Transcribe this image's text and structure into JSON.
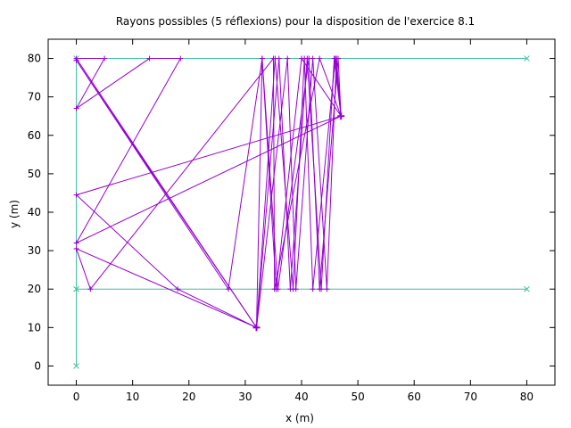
{
  "chart_data": {
    "type": "line",
    "title": "Rayons possibles (5 réflexions) pour la disposition de l'exercice 8.1",
    "xlabel": "x (m)",
    "ylabel": "y (m)",
    "xlim": [
      -5,
      85
    ],
    "ylim": [
      -5,
      85
    ],
    "xticks": [
      "0",
      "10",
      "20",
      "30",
      "40",
      "50",
      "60",
      "70",
      "80"
    ],
    "yticks": [
      "0",
      "10",
      "20",
      "30",
      "40",
      "50",
      "60",
      "70",
      "80"
    ],
    "grid": false,
    "colors": {
      "walls": "#3fbf9f",
      "rays": "#9400d3"
    },
    "series": [
      {
        "role": "walls",
        "polylines": [
          [
            [
              0,
              0
            ],
            [
              0,
              80
            ],
            [
              80,
              80
            ]
          ],
          [
            [
              0,
              20
            ],
            [
              80,
              20
            ]
          ]
        ]
      },
      {
        "role": "rays",
        "source": [
          32,
          10
        ],
        "receiver": [
          47,
          65
        ],
        "polylines": [
          [
            [
              32,
              10
            ],
            [
              0,
              80
            ],
            [
              5,
              80
            ],
            [
              0,
              67
            ],
            [
              13,
              80
            ],
            [
              18.5,
              80
            ],
            [
              0,
              32
            ],
            [
              47,
              65
            ]
          ],
          [
            [
              32,
              10
            ],
            [
              0,
              79.5
            ],
            [
              27,
              20
            ],
            [
              33,
              80
            ],
            [
              35.5,
              20
            ],
            [
              40,
              80
            ],
            [
              47,
              65
            ]
          ],
          [
            [
              32,
              10
            ],
            [
              0,
              30.5
            ],
            [
              2.5,
              20
            ],
            [
              35,
              80
            ],
            [
              35.2,
              20
            ],
            [
              43.2,
              80
            ],
            [
              47,
              65
            ]
          ],
          [
            [
              32,
              10
            ],
            [
              18,
              20
            ],
            [
              0,
              44.5
            ],
            [
              47,
              65
            ]
          ],
          [
            [
              32,
              10
            ],
            [
              36,
              80
            ],
            [
              38,
              20
            ],
            [
              41,
              80
            ],
            [
              43.5,
              20
            ],
            [
              45.8,
              80
            ],
            [
              47,
              65
            ]
          ],
          [
            [
              32,
              10
            ],
            [
              37.5,
              80
            ],
            [
              39,
              20
            ],
            [
              42,
              80
            ],
            [
              44.5,
              20
            ],
            [
              46.2,
              80
            ],
            [
              47,
              65
            ]
          ],
          [
            [
              32,
              10
            ],
            [
              35.3,
              80
            ],
            [
              38.5,
              20
            ],
            [
              40.5,
              80
            ],
            [
              42,
              20
            ],
            [
              46,
              80
            ],
            [
              47,
              65
            ]
          ],
          [
            [
              32,
              10
            ],
            [
              33,
              80
            ],
            [
              35.8,
              20
            ],
            [
              41.3,
              80
            ],
            [
              43.2,
              20
            ],
            [
              46.5,
              80
            ],
            [
              47,
              65
            ]
          ]
        ]
      }
    ]
  }
}
